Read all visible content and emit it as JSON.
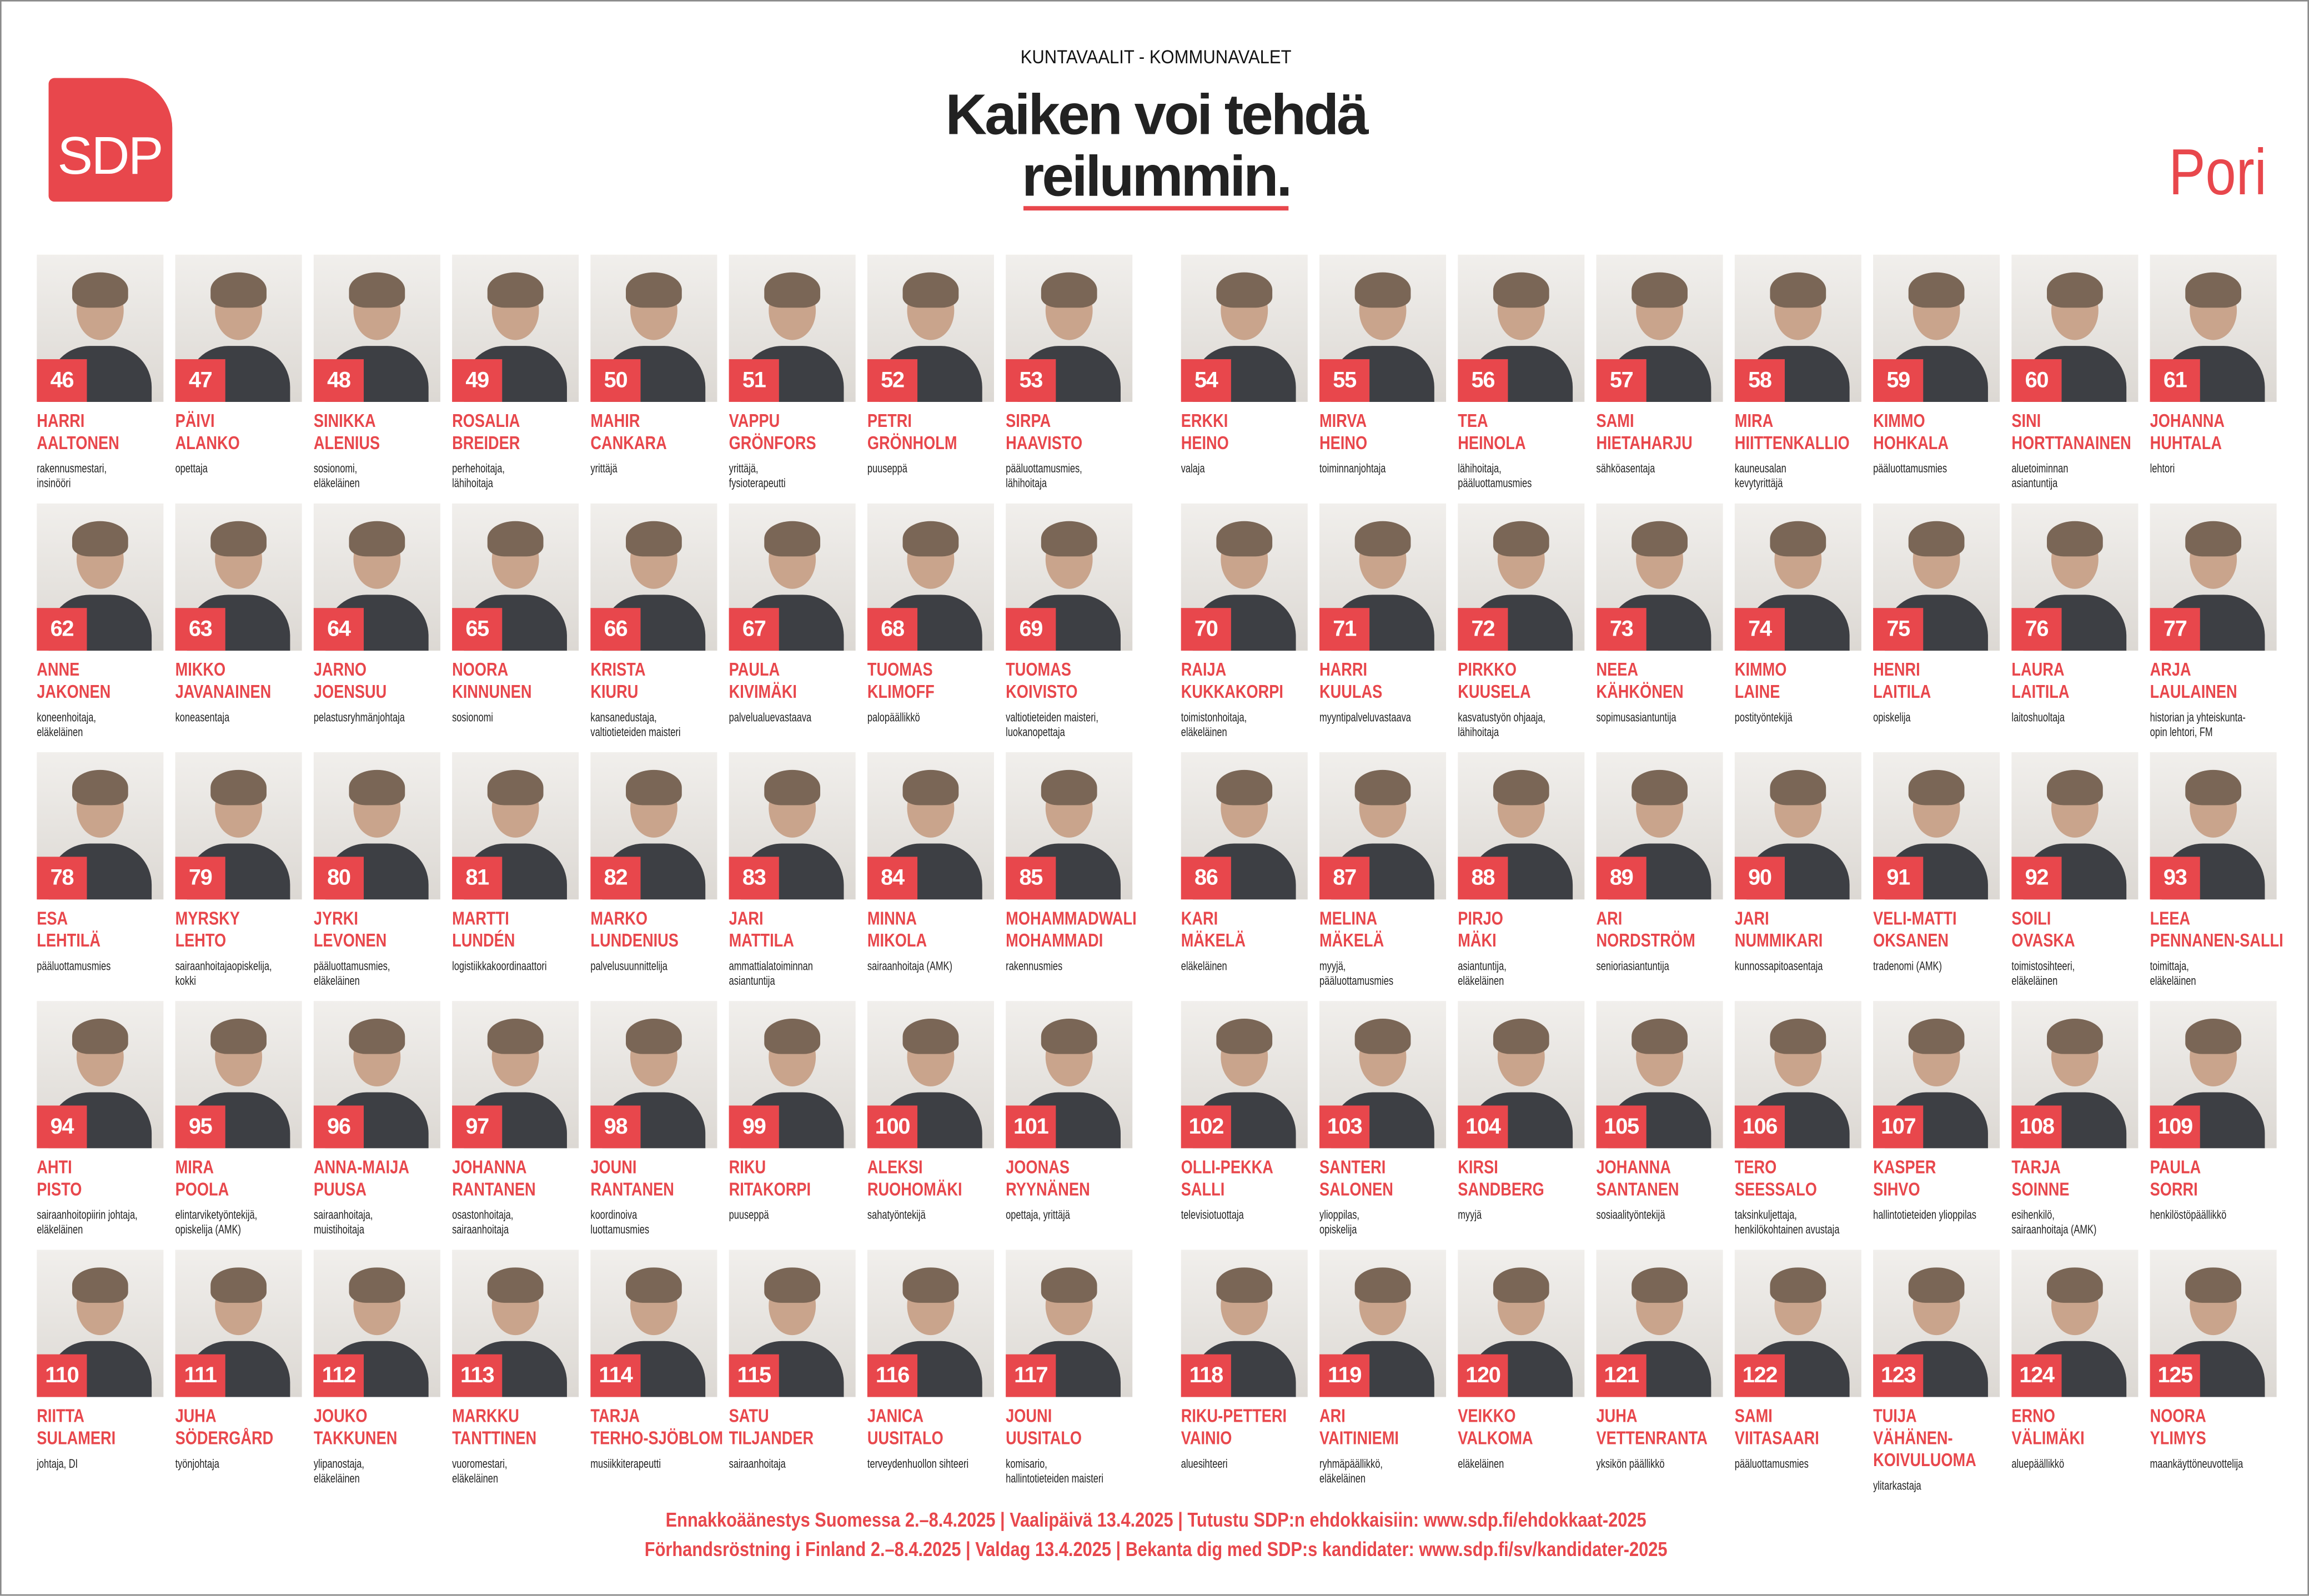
{
  "header": {
    "kicker": "KUNTAVAALIT - KOMMUNAVALET",
    "headline": [
      "Kaiken voi tehdä",
      "reilummin."
    ],
    "logo": "SDP",
    "city": "Pori"
  },
  "candidates": [
    {
      "number": 46,
      "name": [
        "HARRI",
        "AALTONEN"
      ],
      "occupation": [
        "rakennusmestari,",
        "insinööri"
      ]
    },
    {
      "number": 47,
      "name": [
        "PÄIVI",
        "ALANKO"
      ],
      "occupation": [
        "opettaja"
      ]
    },
    {
      "number": 48,
      "name": [
        "SINIKKA",
        "ALENIUS"
      ],
      "occupation": [
        "sosionomi,",
        "eläkeläinen"
      ]
    },
    {
      "number": 49,
      "name": [
        "ROSALIA",
        "BREIDER"
      ],
      "occupation": [
        "perhehoitaja,",
        "lähihoitaja"
      ]
    },
    {
      "number": 50,
      "name": [
        "MAHIR",
        "CANKARA"
      ],
      "occupation": [
        "yrittäjä"
      ]
    },
    {
      "number": 51,
      "name": [
        "VAPPU",
        "GRÖNFORS"
      ],
      "occupation": [
        "yrittäjä,",
        "fysioterapeutti"
      ]
    },
    {
      "number": 52,
      "name": [
        "PETRI",
        "GRÖNHOLM"
      ],
      "occupation": [
        "puuseppä"
      ]
    },
    {
      "number": 53,
      "name": [
        "SIRPA",
        "HAAVISTO"
      ],
      "occupation": [
        "pääluottamusmies,",
        "lähihoitaja"
      ]
    },
    {
      "number": 54,
      "name": [
        "ERKKI",
        "HEINO"
      ],
      "occupation": [
        "valaja"
      ]
    },
    {
      "number": 55,
      "name": [
        "MIRVA",
        "HEINO"
      ],
      "occupation": [
        "toiminnanjohtaja"
      ]
    },
    {
      "number": 56,
      "name": [
        "TEA",
        "HEINOLA"
      ],
      "occupation": [
        "lähihoitaja,",
        "pääluottamusmies"
      ]
    },
    {
      "number": 57,
      "name": [
        "SAMI",
        "HIETAHARJU"
      ],
      "occupation": [
        "sähköasentaja"
      ]
    },
    {
      "number": 58,
      "name": [
        "MIRA",
        "HIITTENKALLIO"
      ],
      "occupation": [
        "kauneusalan",
        "kevytyrittäjä"
      ]
    },
    {
      "number": 59,
      "name": [
        "KIMMO",
        "HOHKALA"
      ],
      "occupation": [
        "pääluottamusmies"
      ]
    },
    {
      "number": 60,
      "name": [
        "SINI",
        "HORTTANAINEN"
      ],
      "occupation": [
        "aluetoiminnan",
        "asiantuntija"
      ]
    },
    {
      "number": 61,
      "name": [
        "JOHANNA",
        "HUHTALA"
      ],
      "occupation": [
        "lehtori"
      ]
    },
    {
      "number": 62,
      "name": [
        "ANNE",
        "JAKONEN"
      ],
      "occupation": [
        "koneenhoitaja,",
        "eläkeläinen"
      ]
    },
    {
      "number": 63,
      "name": [
        "MIKKO",
        "JAVANAINEN"
      ],
      "occupation": [
        "koneasentaja"
      ]
    },
    {
      "number": 64,
      "name": [
        "JARNO",
        "JOENSUU"
      ],
      "occupation": [
        "pelastusryhmänjohtaja"
      ]
    },
    {
      "number": 65,
      "name": [
        "NOORA",
        "KINNUNEN"
      ],
      "occupation": [
        "sosionomi"
      ]
    },
    {
      "number": 66,
      "name": [
        "KRISTA",
        "KIURU"
      ],
      "occupation": [
        "kansanedustaja,",
        "valtiotieteiden maisteri"
      ]
    },
    {
      "number": 67,
      "name": [
        "PAULA",
        "KIVIMÄKI"
      ],
      "occupation": [
        "palvelualuevastaava"
      ]
    },
    {
      "number": 68,
      "name": [
        "TUOMAS",
        "KLIMOFF"
      ],
      "occupation": [
        "palopäällikkö"
      ]
    },
    {
      "number": 69,
      "name": [
        "TUOMAS",
        "KOIVISTO"
      ],
      "occupation": [
        "valtiotieteiden maisteri,",
        "luokanopettaja"
      ]
    },
    {
      "number": 70,
      "name": [
        "RAIJA",
        "KUKKAKORPI"
      ],
      "occupation": [
        "toimistonhoitaja,",
        "eläkeläinen"
      ]
    },
    {
      "number": 71,
      "name": [
        "HARRI",
        "KUULAS"
      ],
      "occupation": [
        "myyntipalveluvastaava"
      ]
    },
    {
      "number": 72,
      "name": [
        "PIRKKO",
        "KUUSELA"
      ],
      "occupation": [
        "kasvatustyön ohjaaja,",
        "lähihoitaja"
      ]
    },
    {
      "number": 73,
      "name": [
        "NEEA",
        "KÄHKÖNEN"
      ],
      "occupation": [
        "sopimusasiantuntija"
      ]
    },
    {
      "number": 74,
      "name": [
        "KIMMO",
        "LAINE"
      ],
      "occupation": [
        "postityöntekijä"
      ]
    },
    {
      "number": 75,
      "name": [
        "HENRI",
        "LAITILA"
      ],
      "occupation": [
        "opiskelija"
      ]
    },
    {
      "number": 76,
      "name": [
        "LAURA",
        "LAITILA"
      ],
      "occupation": [
        "laitoshuoltaja"
      ]
    },
    {
      "number": 77,
      "name": [
        "ARJA",
        "LAULAINEN"
      ],
      "occupation": [
        "historian ja yhteiskunta-",
        "opin lehtori, FM"
      ]
    },
    {
      "number": 78,
      "name": [
        "ESA",
        "LEHTILÄ"
      ],
      "occupation": [
        "pääluottamusmies"
      ]
    },
    {
      "number": 79,
      "name": [
        "MYRSKY",
        "LEHTO"
      ],
      "occupation": [
        "sairaanhoitajaopiskelija,",
        "kokki"
      ]
    },
    {
      "number": 80,
      "name": [
        "JYRKI",
        "LEVONEN"
      ],
      "occupation": [
        "pääluottamusmies,",
        "eläkeläinen"
      ]
    },
    {
      "number": 81,
      "name": [
        "MARTTI",
        "LUNDÉN"
      ],
      "occupation": [
        "logistiikkakoordinaattori"
      ]
    },
    {
      "number": 82,
      "name": [
        "MARKO",
        "LUNDENIUS"
      ],
      "occupation": [
        "palvelusuunnittelija"
      ]
    },
    {
      "number": 83,
      "name": [
        "JARI",
        "MATTILA"
      ],
      "occupation": [
        "ammattialatoiminnan",
        "asiantuntija"
      ]
    },
    {
      "number": 84,
      "name": [
        "MINNA",
        "MIKOLA"
      ],
      "occupation": [
        "sairaanhoitaja (AMK)"
      ]
    },
    {
      "number": 85,
      "name": [
        "MOHAMMADWALI",
        "MOHAMMADI"
      ],
      "occupation": [
        "rakennusmies"
      ]
    },
    {
      "number": 86,
      "name": [
        "KARI",
        "MÄKELÄ"
      ],
      "occupation": [
        "eläkeläinen"
      ]
    },
    {
      "number": 87,
      "name": [
        "MELINA",
        "MÄKELÄ"
      ],
      "occupation": [
        "myyjä,",
        "pääluottamusmies"
      ]
    },
    {
      "number": 88,
      "name": [
        "PIRJO",
        "MÄKI"
      ],
      "occupation": [
        "asiantuntija,",
        "eläkeläinen"
      ]
    },
    {
      "number": 89,
      "name": [
        "ARI",
        "NORDSTRÖM"
      ],
      "occupation": [
        "senioriasiantuntija"
      ]
    },
    {
      "number": 90,
      "name": [
        "JARI",
        "NUMMIKARI"
      ],
      "occupation": [
        "kunnossapitoasentaja"
      ]
    },
    {
      "number": 91,
      "name": [
        "VELI-MATTI",
        "OKSANEN"
      ],
      "occupation": [
        "tradenomi (AMK)"
      ]
    },
    {
      "number": 92,
      "name": [
        "SOILI",
        "OVASKA"
      ],
      "occupation": [
        "toimistosihteeri,",
        "eläkeläinen"
      ]
    },
    {
      "number": 93,
      "name": [
        "LEEA",
        "PENNANEN-SALLI"
      ],
      "occupation": [
        "toimittaja,",
        "eläkeläinen"
      ]
    },
    {
      "number": 94,
      "name": [
        "AHTI",
        "PISTO"
      ],
      "occupation": [
        "sairaanhoitopiirin johtaja,",
        "eläkeläinen"
      ]
    },
    {
      "number": 95,
      "name": [
        "MIRA",
        "POOLA"
      ],
      "occupation": [
        "elintarviketyöntekijä,",
        "opiskelija (AMK)"
      ]
    },
    {
      "number": 96,
      "name": [
        "ANNA-MAIJA",
        "PUUSA"
      ],
      "occupation": [
        "sairaanhoitaja,",
        "muistihoitaja"
      ]
    },
    {
      "number": 97,
      "name": [
        "JOHANNA",
        "RANTANEN"
      ],
      "occupation": [
        "osastonhoitaja,",
        "sairaanhoitaja"
      ]
    },
    {
      "number": 98,
      "name": [
        "JOUNI",
        "RANTANEN"
      ],
      "occupation": [
        "koordinoiva",
        "luottamusmies"
      ]
    },
    {
      "number": 99,
      "name": [
        "RIKU",
        "RITAKORPI"
      ],
      "occupation": [
        "puuseppä"
      ]
    },
    {
      "number": 100,
      "name": [
        "ALEKSI",
        "RUOHOMÄKI"
      ],
      "occupation": [
        "sahatyöntekijä"
      ]
    },
    {
      "number": 101,
      "name": [
        "JOONAS",
        "RYYNÄNEN"
      ],
      "occupation": [
        "opettaja, yrittäjä"
      ]
    },
    {
      "number": 102,
      "name": [
        "OLLI-PEKKA",
        "SALLI"
      ],
      "occupation": [
        "televisiotuottaja"
      ]
    },
    {
      "number": 103,
      "name": [
        "SANTERI",
        "SALONEN"
      ],
      "occupation": [
        "ylioppilas,",
        "opiskelija"
      ]
    },
    {
      "number": 104,
      "name": [
        "KIRSI",
        "SANDBERG"
      ],
      "occupation": [
        "myyjä"
      ]
    },
    {
      "number": 105,
      "name": [
        "JOHANNA",
        "SANTANEN"
      ],
      "occupation": [
        "sosiaalityöntekijä"
      ]
    },
    {
      "number": 106,
      "name": [
        "TERO",
        "SEESSALO"
      ],
      "occupation": [
        "taksinkuljettaja,",
        "henkilökohtainen avustaja"
      ]
    },
    {
      "number": 107,
      "name": [
        "KASPER",
        "SIHVO"
      ],
      "occupation": [
        "hallintotieteiden ylioppilas"
      ]
    },
    {
      "number": 108,
      "name": [
        "TARJA",
        "SOINNE"
      ],
      "occupation": [
        "esihenkilö,",
        "sairaanhoitaja (AMK)"
      ]
    },
    {
      "number": 109,
      "name": [
        "PAULA",
        "SORRI"
      ],
      "occupation": [
        "henkilöstöpäällikkö"
      ]
    },
    {
      "number": 110,
      "name": [
        "RIITTA",
        "SULAMERI"
      ],
      "occupation": [
        "johtaja, DI"
      ]
    },
    {
      "number": 111,
      "name": [
        "JUHA",
        "SÖDERGÅRD"
      ],
      "occupation": [
        "työnjohtaja"
      ]
    },
    {
      "number": 112,
      "name": [
        "JOUKO",
        "TAKKUNEN"
      ],
      "occupation": [
        "ylipanostaja,",
        "eläkeläinen"
      ]
    },
    {
      "number": 113,
      "name": [
        "MARKKU",
        "TANTTINEN"
      ],
      "occupation": [
        "vuoromestari,",
        "eläkeläinen"
      ]
    },
    {
      "number": 114,
      "name": [
        "TARJA",
        "TERHO-SJÖBLOM"
      ],
      "occupation": [
        "musiikkiterapeutti"
      ]
    },
    {
      "number": 115,
      "name": [
        "SATU",
        "TILJANDER"
      ],
      "occupation": [
        "sairaanhoitaja"
      ]
    },
    {
      "number": 116,
      "name": [
        "JANICA",
        "UUSITALO"
      ],
      "occupation": [
        "terveydenhuollon sihteeri"
      ]
    },
    {
      "number": 117,
      "name": [
        "JOUNI",
        "UUSITALO"
      ],
      "occupation": [
        "komisario,",
        "hallintotieteiden maisteri"
      ]
    },
    {
      "number": 118,
      "name": [
        "RIKU-PETTERI",
        "VAINIO"
      ],
      "occupation": [
        "aluesihteeri"
      ]
    },
    {
      "number": 119,
      "name": [
        "ARI",
        "VAITINIEMI"
      ],
      "occupation": [
        "ryhmäpäällikkö,",
        "eläkeläinen"
      ]
    },
    {
      "number": 120,
      "name": [
        "VEIKKO",
        "VALKOMA"
      ],
      "occupation": [
        "eläkeläinen"
      ]
    },
    {
      "number": 121,
      "name": [
        "JUHA",
        "VETTENRANTA"
      ],
      "occupation": [
        "yksikön päällikkö"
      ]
    },
    {
      "number": 122,
      "name": [
        "SAMI",
        "VIITASAARI"
      ],
      "occupation": [
        "pääluottamusmies"
      ]
    },
    {
      "number": 123,
      "name": [
        "TUIJA",
        "VÄHÄNEN-",
        "KOIVULUOMA"
      ],
      "occupation": [
        "ylitarkastaja"
      ]
    },
    {
      "number": 124,
      "name": [
        "ERNO",
        "VÄLIMÄKI"
      ],
      "occupation": [
        "aluepäällikkö"
      ]
    },
    {
      "number": 125,
      "name": [
        "NOORA",
        "YLIMYS"
      ],
      "occupation": [
        "maankäyttöneuvottelija"
      ]
    }
  ],
  "footer": [
    "Ennakkoäänestys Suomessa 2.–8.4.2025 | Vaalipäivä 13.4.2025 | Tutustu SDP:n ehdokkaisiin: www.sdp.fi/ehdokkaat-2025",
    "Förhandsröstning i Finland 2.–8.4.2025 | Valdag 13.4.2025 | Bekanta dig med SDP:s kandidater: www.sdp.fi/sv/kandidater-2025"
  ]
}
